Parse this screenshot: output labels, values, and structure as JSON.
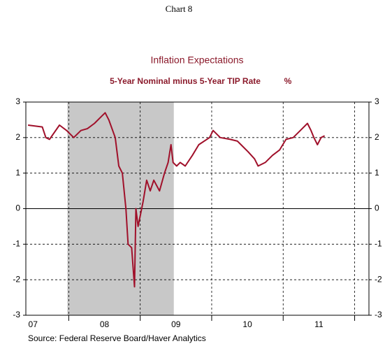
{
  "chart_data": {
    "type": "line",
    "header": "Chart 8",
    "title": "Inflation Expectations",
    "subtitle": "5-Year Nominal minus 5-Year TIP Rate",
    "unit": "%",
    "source": "Source:  Federal Reserve Board/Haver Analytics",
    "xlim": [
      2007.4,
      2012.2
    ],
    "xticks": [
      {
        "value": 2007.5,
        "label": "07"
      },
      {
        "value": 2008.5,
        "label": "08"
      },
      {
        "value": 2009.5,
        "label": "09"
      },
      {
        "value": 2010.5,
        "label": "10"
      },
      {
        "value": 2011.5,
        "label": "11"
      }
    ],
    "xgrid": [
      2008,
      2009,
      2010,
      2011,
      2012
    ],
    "ylim": [
      -3,
      3
    ],
    "yticks": [
      3,
      2,
      1,
      0,
      -1,
      -2,
      -3
    ],
    "grid": true,
    "recession": [
      2007.98,
      2009.47
    ],
    "recession_color": "#c8c8c8",
    "series": [
      {
        "color": "#a0102a",
        "x": [
          2007.43,
          2007.63,
          2007.68,
          2007.73,
          2007.87,
          2007.97,
          2008.07,
          2008.17,
          2008.26,
          2008.36,
          2008.46,
          2008.51,
          2008.56,
          2008.65,
          2008.7,
          2008.75,
          2008.8,
          2008.83,
          2008.88,
          2008.92,
          2008.94,
          2008.97,
          2009.0,
          2009.04,
          2009.09,
          2009.14,
          2009.19,
          2009.27,
          2009.34,
          2009.39,
          2009.43,
          2009.46,
          2009.51,
          2009.56,
          2009.63,
          2009.73,
          2009.82,
          2009.97,
          2010.02,
          2010.12,
          2010.26,
          2010.36,
          2010.41,
          2010.51,
          2010.6,
          2010.65,
          2010.75,
          2010.85,
          2010.95,
          2011.04,
          2011.14,
          2011.24,
          2011.34,
          2011.39,
          2011.43,
          2011.48,
          2011.53,
          2011.58
        ],
        "values": [
          2.35,
          2.3,
          2.0,
          1.95,
          2.35,
          2.2,
          2.0,
          2.2,
          2.25,
          2.4,
          2.6,
          2.7,
          2.5,
          2.0,
          1.2,
          1.0,
          0.0,
          -1.0,
          -1.1,
          -2.2,
          0.0,
          -0.5,
          -0.2,
          0.2,
          0.8,
          0.5,
          0.8,
          0.5,
          1.0,
          1.3,
          1.8,
          1.3,
          1.2,
          1.3,
          1.2,
          1.5,
          1.8,
          2.0,
          2.2,
          2.0,
          1.95,
          1.9,
          1.8,
          1.6,
          1.4,
          1.2,
          1.3,
          1.5,
          1.65,
          1.95,
          2.0,
          2.2,
          2.4,
          2.2,
          2.0,
          1.8,
          2.0,
          2.05
        ]
      }
    ]
  }
}
